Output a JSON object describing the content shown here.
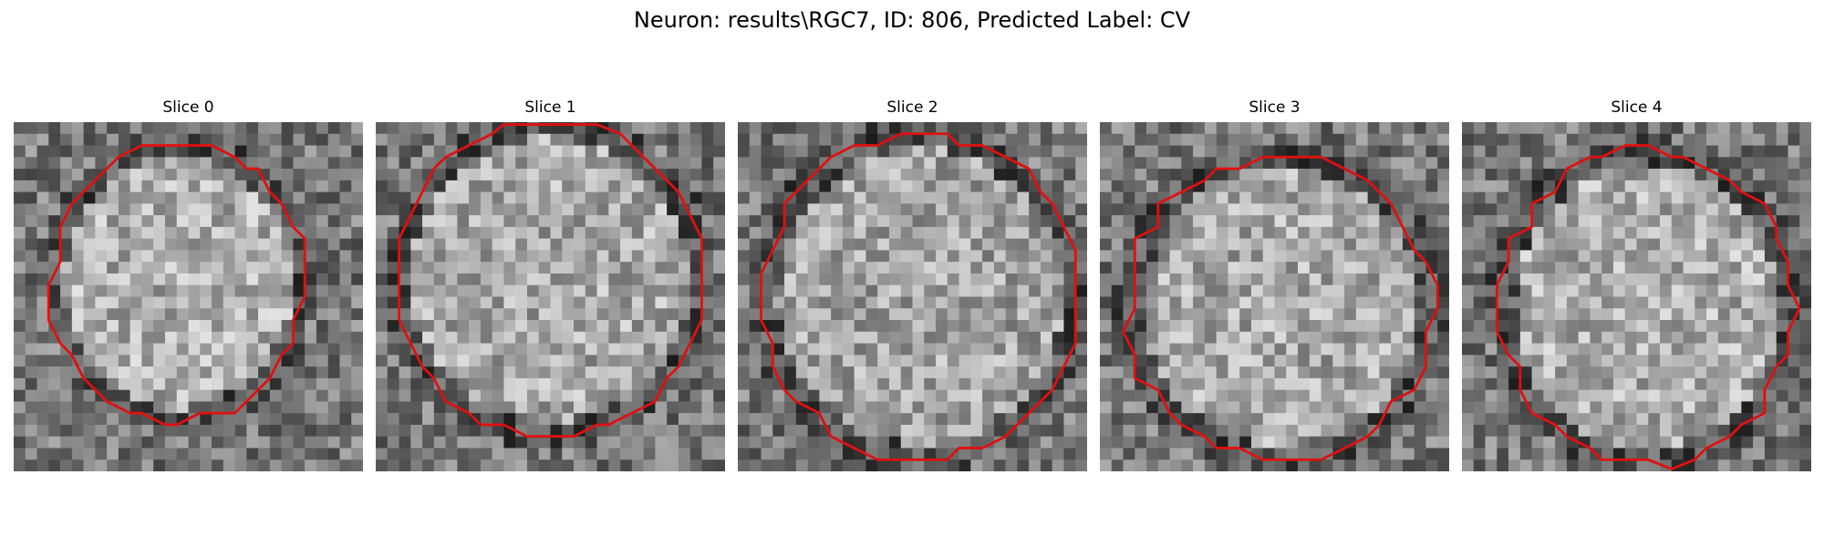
{
  "figure": {
    "title": "Neuron: results\\RGC7, ID: 806, Predicted Label: CV"
  },
  "slices": [
    {
      "label": "Slice 0",
      "seed": 11,
      "center": [
        0.47,
        0.46
      ],
      "radius": [
        0.36,
        0.4
      ],
      "bright": 0.68
    },
    {
      "label": "Slice 1",
      "seed": 23,
      "center": [
        0.5,
        0.45
      ],
      "radius": [
        0.44,
        0.45
      ],
      "bright": 0.66
    },
    {
      "label": "Slice 2",
      "seed": 37,
      "center": [
        0.52,
        0.5
      ],
      "radius": [
        0.45,
        0.47
      ],
      "bright": 0.64
    },
    {
      "label": "Slice 3",
      "seed": 41,
      "center": [
        0.52,
        0.53
      ],
      "radius": [
        0.44,
        0.44
      ],
      "bright": 0.66
    },
    {
      "label": "Slice 4",
      "seed": 59,
      "center": [
        0.53,
        0.53
      ],
      "radius": [
        0.42,
        0.45
      ],
      "bright": 0.68
    }
  ],
  "colors": {
    "contour": "#e01010",
    "background": "#ffffff"
  }
}
